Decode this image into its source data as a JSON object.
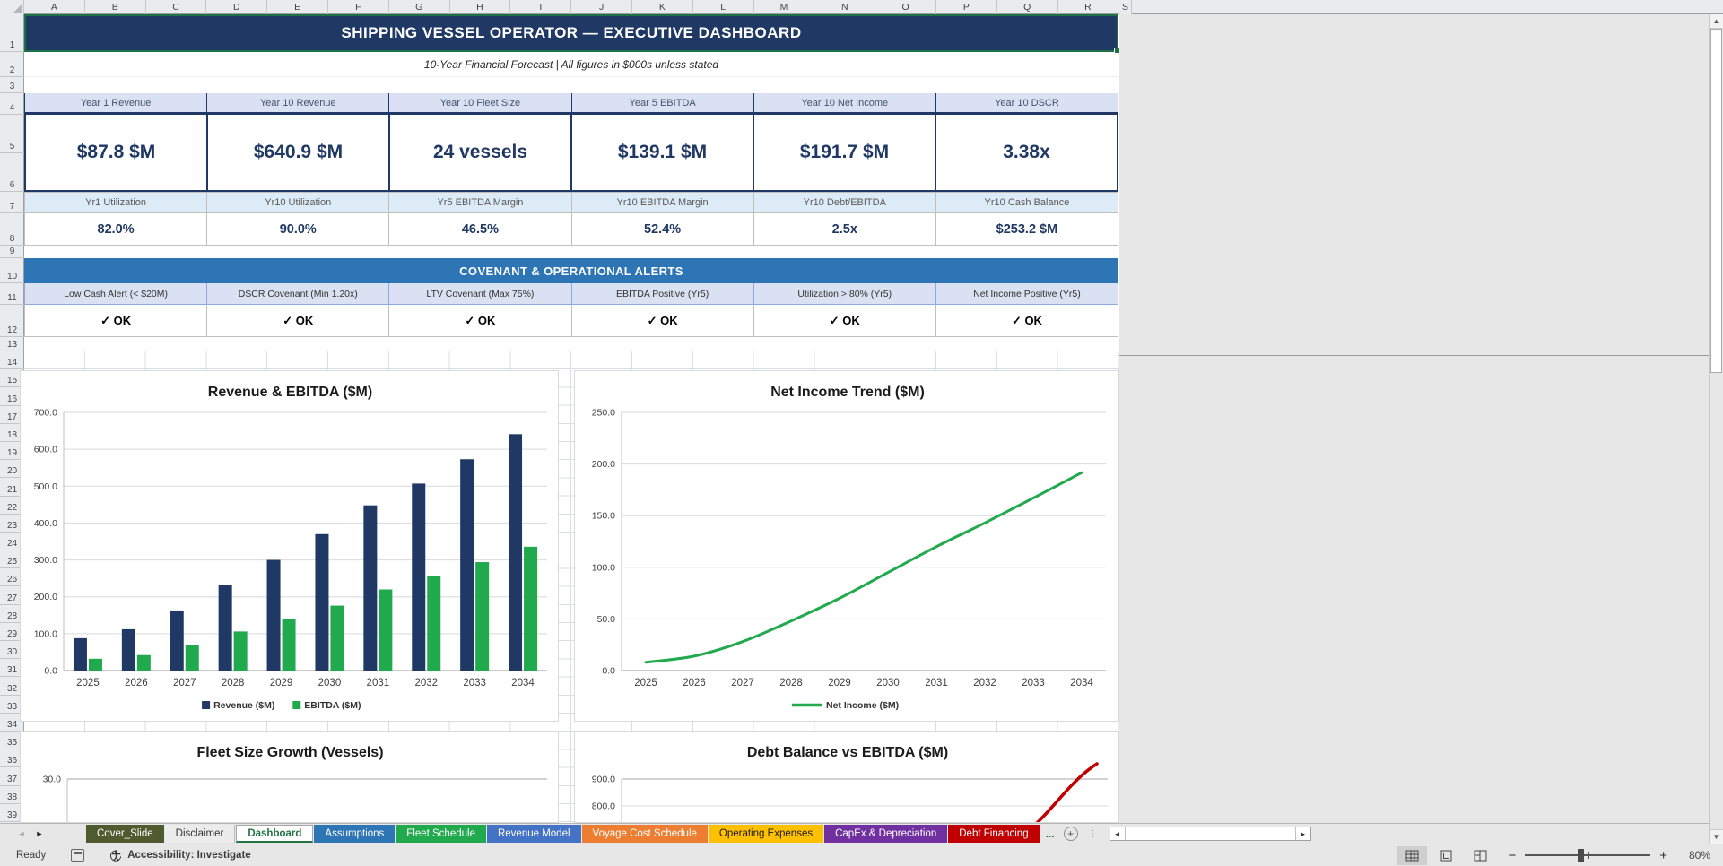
{
  "grid": {
    "column_letters": [
      "A",
      "B",
      "C",
      "D",
      "E",
      "F",
      "G",
      "H",
      "I",
      "J",
      "K",
      "L",
      "M",
      "N",
      "O",
      "P",
      "Q",
      "R",
      "S"
    ],
    "row_count": 39
  },
  "header": {
    "title": "SHIPPING VESSEL OPERATOR — EXECUTIVE DASHBOARD",
    "subtitle": "10-Year Financial Forecast  |  All figures in $000s unless stated"
  },
  "kpi_row1": [
    {
      "label": "Year 1 Revenue",
      "value": "$87.8 $M"
    },
    {
      "label": "Year 10 Revenue",
      "value": "$640.9 $M"
    },
    {
      "label": "Year 10 Fleet Size",
      "value": "24 vessels"
    },
    {
      "label": "Year 5 EBITDA",
      "value": "$139.1 $M"
    },
    {
      "label": "Year 10 Net Income",
      "value": "$191.7 $M"
    },
    {
      "label": "Year 10 DSCR",
      "value": "3.38x"
    }
  ],
  "kpi_row2": [
    {
      "label": "Yr1 Utilization",
      "value": "82.0%"
    },
    {
      "label": "Yr10 Utilization",
      "value": "90.0%"
    },
    {
      "label": "Yr5 EBITDA Margin",
      "value": "46.5%"
    },
    {
      "label": "Yr10 EBITDA Margin",
      "value": "52.4%"
    },
    {
      "label": "Yr10 Debt/EBITDA",
      "value": "2.5x"
    },
    {
      "label": "Yr10 Cash Balance",
      "value": "$253.2 $M"
    }
  ],
  "alerts": {
    "header": "COVENANT & OPERATIONAL ALERTS",
    "items": [
      {
        "label": "Low Cash Alert (< $20M)",
        "status": "✓ OK"
      },
      {
        "label": "DSCR Covenant (Min 1.20x)",
        "status": "✓ OK"
      },
      {
        "label": "LTV Covenant (Max 75%)",
        "status": "✓ OK"
      },
      {
        "label": "EBITDA Positive (Yr5)",
        "status": "✓ OK"
      },
      {
        "label": "Utilization > 80% (Yr5)",
        "status": "✓ OK"
      },
      {
        "label": "Net Income Positive (Yr5)",
        "status": "✓ OK"
      }
    ]
  },
  "chart_data": [
    {
      "id": "revenue_ebitda",
      "type": "bar",
      "title": "Revenue & EBITDA ($M)",
      "categories": [
        "2025",
        "2026",
        "2027",
        "2028",
        "2029",
        "2030",
        "2031",
        "2032",
        "2033",
        "2034"
      ],
      "series": [
        {
          "name": "Revenue ($M)",
          "color": "#1F3864",
          "values": [
            87.8,
            112,
            163,
            232,
            300,
            370,
            448,
            507,
            573,
            640.9
          ]
        },
        {
          "name": "EBITDA ($M)",
          "color": "#21A94E",
          "values": [
            32,
            42,
            70,
            106,
            139.1,
            176,
            220,
            256,
            294,
            335.8
          ]
        }
      ],
      "ylim": [
        0,
        700
      ],
      "ytick_step": 100,
      "grid": true,
      "legend_position": "bottom"
    },
    {
      "id": "net_income",
      "type": "line",
      "title": "Net Income Trend ($M)",
      "categories": [
        "2025",
        "2026",
        "2027",
        "2028",
        "2029",
        "2030",
        "2031",
        "2032",
        "2033",
        "2034"
      ],
      "series": [
        {
          "name": "Net Income ($M)",
          "color": "#21A94E",
          "values": [
            8,
            14,
            28,
            48,
            70,
            95,
            120,
            143,
            167,
            191.7
          ]
        }
      ],
      "ylim": [
        0,
        250
      ],
      "ytick_step": 50,
      "grid": true,
      "legend_position": "bottom"
    },
    {
      "id": "fleet_size",
      "type": "line",
      "partially_visible": true,
      "title": "Fleet Size Growth (Vessels)",
      "visible_yticks": [
        "30.0"
      ]
    },
    {
      "id": "debt_vs_ebitda",
      "type": "line",
      "partially_visible": true,
      "title": "Debt Balance vs EBITDA ($M)",
      "visible_yticks": [
        "900.0",
        "800.0"
      ],
      "visible_series": [
        {
          "color": "#C00000",
          "visible_segment_y_range": [
            770,
            860
          ],
          "description": "red curve rising toward right edge, approaching ≈860 at 2034"
        }
      ]
    }
  ],
  "sheet_tabs": {
    "nav_left": "◄",
    "nav_right": "►",
    "tabs": [
      {
        "label": "Cover_Slide",
        "bg": "#4F5B2E",
        "fg": "#FFFFFF",
        "active": false
      },
      {
        "label": "Disclaimer",
        "bg": "",
        "fg": "#333333",
        "active": false
      },
      {
        "label": "Dashboard",
        "bg": "#FFFFFF",
        "fg": "#217346",
        "active": true
      },
      {
        "label": "Assumptions",
        "bg": "#2E75B6",
        "fg": "#FFFFFF",
        "active": false
      },
      {
        "label": "Fleet Schedule",
        "bg": "#21A94E",
        "fg": "#FFFFFF",
        "active": false
      },
      {
        "label": "Revenue Model",
        "bg": "#4472C4",
        "fg": "#FFFFFF",
        "active": false
      },
      {
        "label": "Voyage Cost Schedule",
        "bg": "#ED7D31",
        "fg": "#FFFFFF",
        "active": false
      },
      {
        "label": "Operating Expenses",
        "bg": "#FFC000",
        "fg": "#1A1A1A",
        "active": false
      },
      {
        "label": "CapEx & Depreciation",
        "bg": "#7030A0",
        "fg": "#FFFFFF",
        "active": false
      },
      {
        "label": "Debt Financing",
        "bg": "#C00000",
        "fg": "#FFFFFF",
        "active": false
      }
    ],
    "more_indicator": "...",
    "new_sheet": "+"
  },
  "status_bar": {
    "ready": "Ready",
    "accessibility": "Accessibility: Investigate",
    "zoom_level": "80%"
  }
}
